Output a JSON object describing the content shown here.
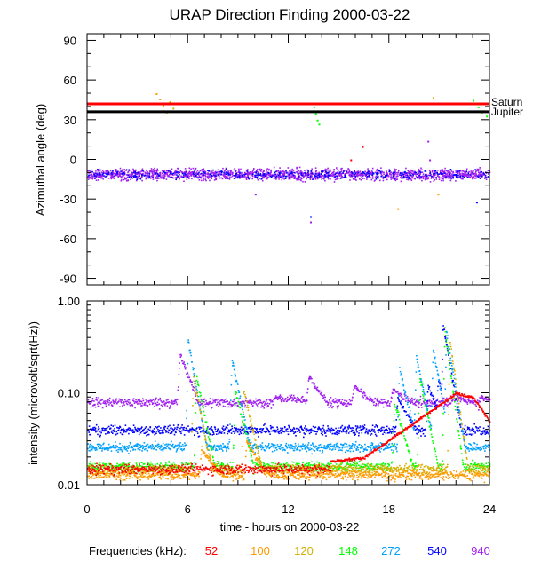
{
  "chart_data": [
    {
      "type": "scatter",
      "title": "URAP Direction Finding  2000-03-22",
      "ylabel": "Azimuthal angle (deg)",
      "xlim": [
        0,
        24
      ],
      "ylim": [
        -95,
        95
      ],
      "yticks": [
        90,
        60,
        30,
        0,
        -30,
        -60,
        -90
      ],
      "ytick_labels": [
        "90",
        "60",
        "30",
        "0",
        "-30",
        "-60",
        "-90"
      ],
      "reference_lines": [
        {
          "name": "Saturn",
          "value": 42,
          "color": "#ff0000"
        },
        {
          "name": "Jupiter",
          "value": 36,
          "color": "#000000"
        }
      ],
      "series": [
        {
          "name": "940",
          "band_center": -11,
          "band_spread": 4,
          "color": "#a020f0"
        },
        {
          "name": "540",
          "band_center": -11,
          "band_spread": 3,
          "color": "#0000ff"
        }
      ],
      "outlier_points": [
        {
          "t": 4.1,
          "v": 50,
          "freq": "100"
        },
        {
          "t": 4.3,
          "v": 46,
          "freq": "100"
        },
        {
          "t": 4.5,
          "v": 41,
          "freq": "100"
        },
        {
          "t": 4.7,
          "v": 36,
          "freq": "120"
        },
        {
          "t": 4.9,
          "v": 44,
          "freq": "120"
        },
        {
          "t": 5.1,
          "v": 39,
          "freq": "120"
        },
        {
          "t": 13.5,
          "v": 40,
          "freq": "148"
        },
        {
          "t": 13.6,
          "v": 35,
          "freq": "148"
        },
        {
          "t": 13.7,
          "v": 30,
          "freq": "148"
        },
        {
          "t": 13.8,
          "v": 27,
          "freq": "148"
        },
        {
          "t": 13.55,
          "v": 43,
          "freq": "148"
        },
        {
          "t": 13.3,
          "v": -43,
          "freq": "540"
        },
        {
          "t": 13.3,
          "v": -47,
          "freq": "940"
        },
        {
          "t": 16.4,
          "v": 10,
          "freq": "52"
        },
        {
          "t": 15.7,
          "v": 0,
          "freq": "52"
        },
        {
          "t": 18.5,
          "v": -37,
          "freq": "100"
        },
        {
          "t": 20.3,
          "v": 14,
          "freq": "940"
        },
        {
          "t": 20.4,
          "v": 0,
          "freq": "940"
        },
        {
          "t": 20.6,
          "v": 47,
          "freq": "120"
        },
        {
          "t": 20.9,
          "v": -26,
          "freq": "100"
        },
        {
          "t": 23.0,
          "v": 45,
          "freq": "148"
        },
        {
          "t": 23.3,
          "v": 40,
          "freq": "148"
        },
        {
          "t": 23.5,
          "v": 36,
          "freq": "148"
        },
        {
          "t": 23.8,
          "v": 33,
          "freq": "148"
        },
        {
          "t": 23.2,
          "v": -32,
          "freq": "540"
        },
        {
          "t": 10.0,
          "v": -26,
          "freq": "940"
        }
      ]
    },
    {
      "type": "scatter",
      "ylabel": "intensity (microvolt/sqrt(Hz))",
      "xlabel": "time - hours on 2000-03-22",
      "xlim": [
        0,
        24
      ],
      "xticks": [
        0,
        6,
        12,
        18,
        24
      ],
      "xtick_labels": [
        "0",
        "6",
        "12",
        "18",
        "24"
      ],
      "yscale": "log",
      "ylim": [
        0.01,
        1.0
      ],
      "yticks": [
        1.0,
        0.1,
        0.01
      ],
      "ytick_labels": [
        "1.00",
        "0.10",
        "0.01"
      ],
      "series": [
        {
          "name": "940",
          "color": "#a020f0",
          "baseline": 0.08,
          "spikes": [
            [
              5.5,
              0.27
            ],
            [
              11.2,
              0.09
            ],
            [
              12.1,
              0.09
            ],
            [
              13.2,
              0.15
            ],
            [
              15.9,
              0.12
            ],
            [
              18.2,
              0.11
            ],
            [
              21.8,
              0.09
            ],
            [
              23.5,
              0.09
            ]
          ]
        },
        {
          "name": "540",
          "color": "#0000ff",
          "baseline": 0.04,
          "spikes": [
            [
              18.5,
              0.09
            ],
            [
              20.3,
              0.12
            ],
            [
              20.9,
              0.14
            ],
            [
              21.2,
              0.55
            ]
          ]
        },
        {
          "name": "272",
          "color": "#00a0ff",
          "baseline": 0.026,
          "spikes": [
            [
              6.0,
              0.38
            ],
            [
              8.6,
              0.24
            ],
            [
              18.6,
              0.19
            ],
            [
              19.6,
              0.25
            ],
            [
              20.6,
              0.3
            ],
            [
              21.4,
              0.47
            ]
          ]
        },
        {
          "name": "148",
          "color": "#00ff00",
          "baseline": 0.016,
          "spikes": [
            [
              6.5,
              0.15
            ],
            [
              8.8,
              0.11
            ],
            [
              18.3,
              0.08
            ],
            [
              19.8,
              0.15
            ],
            [
              21.3,
              0.5
            ]
          ]
        },
        {
          "name": "120",
          "color": "#d4b000",
          "baseline": 0.015,
          "spikes": [
            [
              6.3,
              0.15
            ],
            [
              9.3,
              0.11
            ],
            [
              21.6,
              0.38
            ]
          ]
        },
        {
          "name": "100",
          "color": "#ff9900",
          "baseline": 0.013,
          "spikes": [
            [
              6.8,
              0.025
            ],
            [
              9.5,
              0.03
            ]
          ]
        },
        {
          "name": "52",
          "color": "#ff0000",
          "baseline": 0.015,
          "hump": [
            [
              14.5,
              0.018
            ],
            [
              16.5,
              0.02
            ],
            [
              22.0,
              0.1
            ],
            [
              23.0,
              0.09
            ],
            [
              24.0,
              0.05
            ]
          ]
        }
      ]
    }
  ],
  "legend": {
    "label": "Frequencies (kHz):",
    "items": [
      {
        "text": "52",
        "color": "#ff0000"
      },
      {
        "text": "100",
        "color": "#ff9900"
      },
      {
        "text": "120",
        "color": "#d4b000"
      },
      {
        "text": "148",
        "color": "#00ff00"
      },
      {
        "text": "272",
        "color": "#00a0ff"
      },
      {
        "text": "540",
        "color": "#0000ff"
      },
      {
        "text": "940",
        "color": "#a020f0"
      }
    ]
  }
}
